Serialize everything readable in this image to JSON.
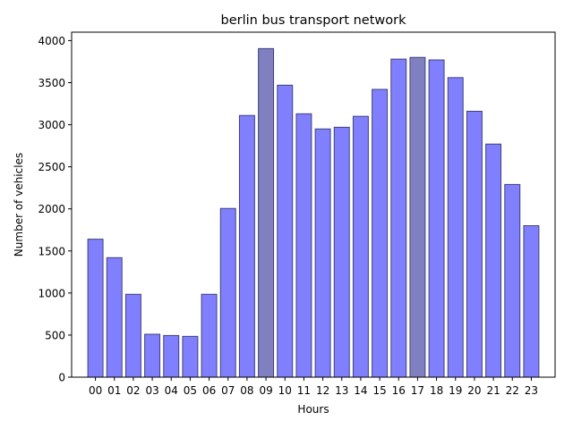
{
  "chart_data": {
    "type": "bar",
    "title": "berlin bus transport network",
    "xlabel": "Hours",
    "ylabel": "Number of vehicles",
    "categories": [
      "00",
      "01",
      "02",
      "03",
      "04",
      "05",
      "06",
      "07",
      "08",
      "09",
      "10",
      "11",
      "12",
      "13",
      "14",
      "15",
      "16",
      "17",
      "18",
      "19",
      "20",
      "21",
      "22",
      "23"
    ],
    "values": [
      1640,
      1420,
      985,
      510,
      495,
      485,
      985,
      2005,
      3110,
      3905,
      3470,
      3130,
      2950,
      2970,
      3100,
      3420,
      3780,
      3800,
      3770,
      3560,
      3160,
      2770,
      2290,
      1800
    ],
    "highlight": [
      false,
      false,
      false,
      false,
      false,
      false,
      false,
      false,
      false,
      true,
      false,
      false,
      false,
      false,
      false,
      false,
      false,
      true,
      false,
      false,
      false,
      false,
      false,
      false
    ],
    "ylim": [
      0,
      4100
    ],
    "yticks": [
      0,
      500,
      1000,
      1500,
      2000,
      2500,
      3000,
      3500,
      4000
    ],
    "grid": false,
    "colors": {
      "bar": "#8080ff",
      "bar_highlight": "#8080c0",
      "bar_edge": "#40407a"
    }
  }
}
